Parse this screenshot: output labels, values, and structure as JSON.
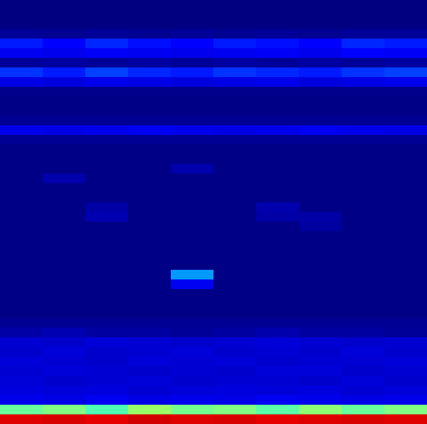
{
  "chart_data": {
    "type": "heatmap",
    "tick_labels": false,
    "zlim": [
      0,
      1
    ],
    "cells": [
      [
        0,
        0,
        0,
        0,
        0,
        0,
        0,
        0,
        0,
        0
      ],
      [
        0,
        0,
        0,
        0,
        0,
        0,
        0,
        0,
        0,
        0
      ],
      [
        0,
        0,
        0,
        0,
        0,
        0,
        0,
        0,
        0,
        0
      ],
      [
        0.04,
        0.03,
        0.04,
        0.03,
        0.04,
        0.03,
        0.04,
        0.03,
        0.04,
        0.04
      ],
      [
        0.22,
        0.2,
        0.23,
        0.21,
        0.2,
        0.22,
        0.21,
        0.2,
        0.23,
        0.22
      ],
      [
        0.18,
        0.17,
        0.19,
        0.18,
        0.17,
        0.18,
        0.19,
        0.17,
        0.2,
        0.19
      ],
      [
        0.04,
        0.05,
        0.04,
        0.05,
        0.04,
        0.05,
        0.04,
        0.05,
        0.04,
        0.05
      ],
      [
        0.24,
        0.22,
        0.25,
        0.23,
        0.22,
        0.24,
        0.23,
        0.22,
        0.24,
        0.25
      ],
      [
        0.16,
        0.15,
        0.17,
        0.16,
        0.15,
        0.16,
        0.17,
        0.15,
        0.16,
        0.17
      ],
      [
        0.02,
        0.02,
        0.02,
        0.02,
        0.02,
        0.02,
        0.02,
        0.02,
        0.02,
        0.02
      ],
      [
        0.01,
        0.01,
        0.01,
        0.01,
        0.01,
        0.01,
        0.01,
        0.01,
        0.01,
        0.01
      ],
      [
        0.01,
        0.01,
        0.01,
        0.01,
        0.01,
        0.01,
        0.01,
        0.01,
        0.01,
        0.01
      ],
      [
        0.03,
        0.03,
        0.03,
        0.03,
        0.03,
        0.03,
        0.03,
        0.03,
        0.03,
        0.03
      ],
      [
        0.17,
        0.16,
        0.17,
        0.18,
        0.17,
        0.16,
        0.17,
        0.18,
        0.17,
        0.16
      ],
      [
        0.03,
        0.03,
        0.03,
        0.03,
        0.03,
        0.03,
        0.03,
        0.03,
        0.03,
        0.03
      ],
      [
        0.01,
        0.01,
        0.01,
        0.01,
        0.01,
        0.01,
        0.01,
        0.01,
        0.01,
        0.01
      ],
      [
        0.01,
        0.01,
        0.01,
        0.01,
        0.01,
        0.01,
        0.01,
        0.01,
        0.01,
        0.01
      ],
      [
        0.01,
        0.01,
        0.01,
        0.01,
        0.07,
        0.01,
        0.01,
        0.01,
        0.01,
        0.01
      ],
      [
        0.01,
        0.07,
        0.01,
        0.01,
        0.01,
        0.01,
        0.01,
        0.01,
        0.01,
        0.01
      ],
      [
        0.01,
        0.01,
        0.01,
        0.01,
        0.01,
        0.01,
        0.01,
        0.01,
        0.01,
        0.01
      ],
      [
        0.01,
        0.01,
        0.01,
        0.01,
        0.01,
        0.01,
        0.01,
        0.01,
        0.01,
        0.01
      ],
      [
        0.01,
        0.01,
        0.06,
        0.01,
        0.01,
        0.01,
        0.07,
        0.01,
        0.01,
        0.01
      ],
      [
        0.01,
        0.01,
        0.08,
        0.01,
        0.01,
        0.01,
        0.06,
        0.06,
        0.01,
        0.01
      ],
      [
        0.01,
        0.01,
        0.01,
        0.01,
        0.01,
        0.01,
        0.01,
        0.05,
        0.01,
        0.01
      ],
      [
        0.01,
        0.01,
        0.01,
        0.01,
        0.01,
        0.01,
        0.01,
        0.01,
        0.01,
        0.01
      ],
      [
        0.01,
        0.01,
        0.01,
        0.01,
        0.01,
        0.01,
        0.01,
        0.01,
        0.01,
        0.01
      ],
      [
        0.01,
        0.01,
        0.01,
        0.01,
        0.01,
        0.01,
        0.01,
        0.01,
        0.01,
        0.01
      ],
      [
        0.01,
        0.01,
        0.01,
        0.01,
        0.01,
        0.01,
        0.01,
        0.01,
        0.01,
        0.01
      ],
      [
        0.01,
        0.01,
        0.01,
        0.01,
        0.32,
        0.01,
        0.01,
        0.01,
        0.01,
        0.01
      ],
      [
        0.01,
        0.01,
        0.01,
        0.01,
        0.18,
        0.01,
        0.01,
        0.01,
        0.01,
        0.01
      ],
      [
        0.01,
        0.01,
        0.01,
        0.01,
        0.01,
        0.01,
        0.01,
        0.01,
        0.01,
        0.01
      ],
      [
        0.01,
        0.01,
        0.01,
        0.01,
        0.01,
        0.01,
        0.01,
        0.01,
        0.01,
        0.01
      ],
      [
        0.01,
        0.01,
        0.01,
        0.01,
        0.01,
        0.01,
        0.01,
        0.01,
        0.01,
        0.01
      ],
      [
        0.03,
        0.03,
        0.03,
        0.03,
        0.03,
        0.03,
        0.03,
        0.03,
        0.03,
        0.03
      ],
      [
        0.06,
        0.08,
        0.05,
        0.05,
        0.04,
        0.05,
        0.07,
        0.05,
        0.05,
        0.04
      ],
      [
        0.13,
        0.12,
        0.14,
        0.13,
        0.12,
        0.13,
        0.14,
        0.13,
        0.12,
        0.13
      ],
      [
        0.12,
        0.14,
        0.12,
        0.13,
        0.14,
        0.12,
        0.13,
        0.12,
        0.14,
        0.12
      ],
      [
        0.14,
        0.13,
        0.12,
        0.14,
        0.13,
        0.14,
        0.12,
        0.13,
        0.13,
        0.14
      ],
      [
        0.13,
        0.14,
        0.13,
        0.12,
        0.13,
        0.12,
        0.14,
        0.14,
        0.12,
        0.13
      ],
      [
        0.14,
        0.12,
        0.13,
        0.14,
        0.12,
        0.13,
        0.13,
        0.12,
        0.14,
        0.12
      ],
      [
        0.15,
        0.14,
        0.15,
        0.13,
        0.14,
        0.15,
        0.14,
        0.15,
        0.13,
        0.14
      ],
      [
        0.17,
        0.16,
        0.18,
        0.16,
        0.17,
        0.16,
        0.18,
        0.17,
        0.16,
        0.17
      ],
      [
        0.48,
        0.5,
        0.46,
        0.52,
        0.49,
        0.5,
        0.47,
        0.51,
        0.48,
        0.5
      ],
      [
        0.85,
        0.86,
        0.84,
        0.87,
        0.85,
        0.86,
        0.84,
        0.85,
        0.86,
        0.85
      ]
    ]
  }
}
